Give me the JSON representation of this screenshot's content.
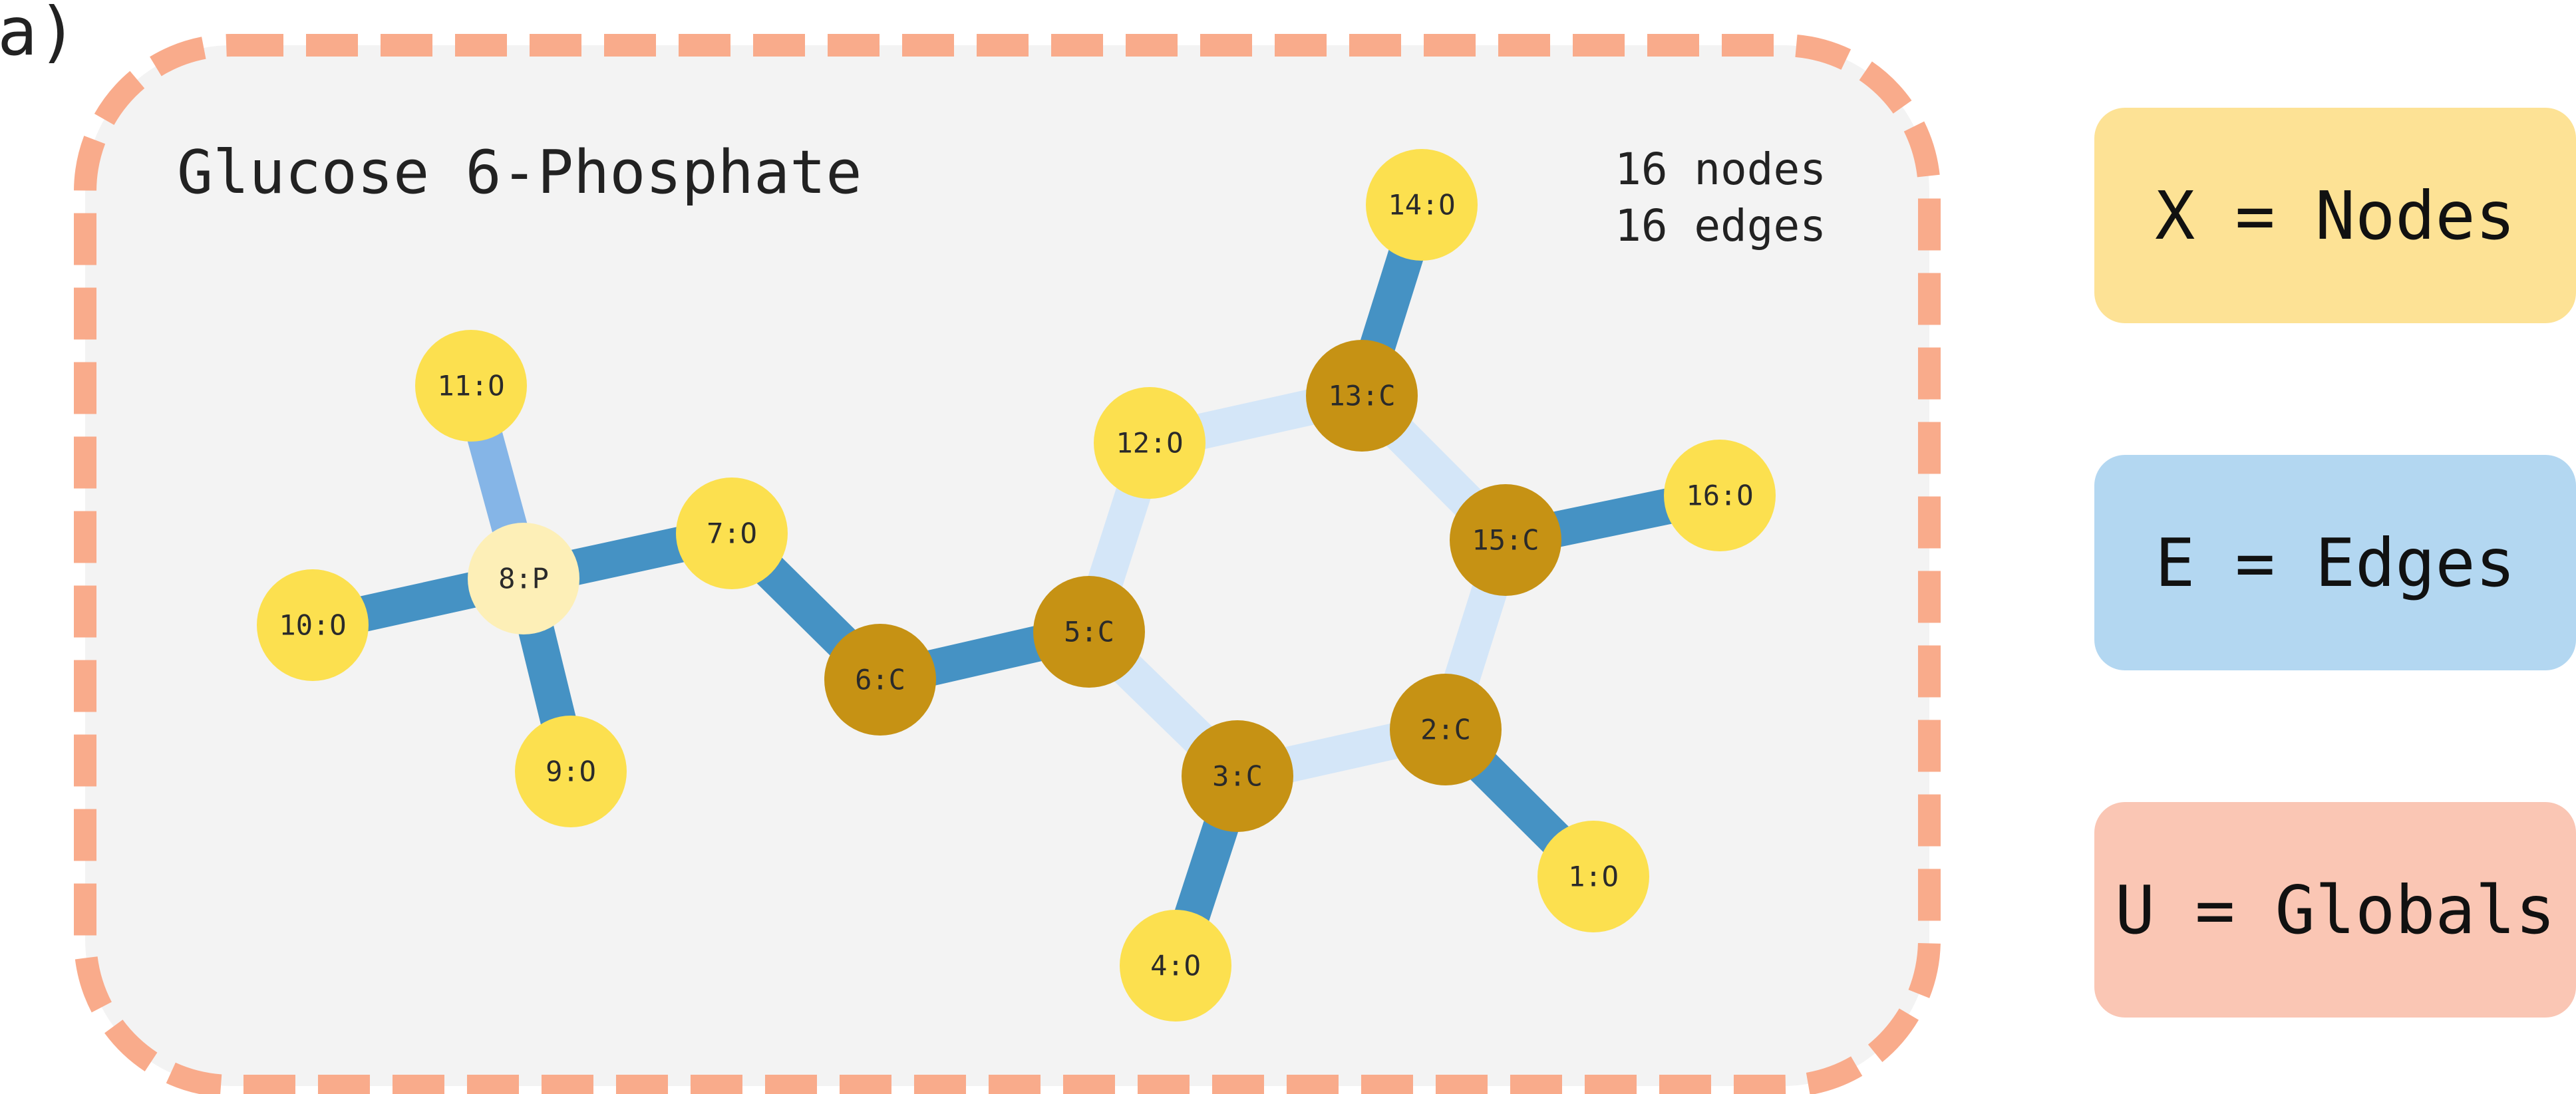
{
  "panel_label": "a)",
  "graph": {
    "title": "Glucose 6-Phosphate",
    "stats": [
      "16 nodes",
      "16 edges"
    ],
    "nodes": [
      {
        "id": "1:O"
      },
      {
        "id": "2:C"
      },
      {
        "id": "3:C"
      },
      {
        "id": "4:O"
      },
      {
        "id": "5:C"
      },
      {
        "id": "6:C"
      },
      {
        "id": "7:O"
      },
      {
        "id": "8:P"
      },
      {
        "id": "9:O"
      },
      {
        "id": "10:O"
      },
      {
        "id": "11:O"
      },
      {
        "id": "12:O"
      },
      {
        "id": "13:C"
      },
      {
        "id": "14:O"
      },
      {
        "id": "15:C"
      },
      {
        "id": "16:O"
      }
    ],
    "edges": [
      {
        "from": "10:O",
        "to": "8:P",
        "kind": "strong"
      },
      {
        "from": "11:O",
        "to": "8:P",
        "kind": "medium"
      },
      {
        "from": "8:P",
        "to": "9:O",
        "kind": "strong"
      },
      {
        "from": "8:P",
        "to": "7:O",
        "kind": "strong"
      },
      {
        "from": "7:O",
        "to": "6:C",
        "kind": "strong"
      },
      {
        "from": "6:C",
        "to": "5:C",
        "kind": "strong"
      },
      {
        "from": "5:C",
        "to": "12:O",
        "kind": "light"
      },
      {
        "from": "12:O",
        "to": "13:C",
        "kind": "light"
      },
      {
        "from": "13:C",
        "to": "14:O",
        "kind": "strong"
      },
      {
        "from": "13:C",
        "to": "15:C",
        "kind": "light"
      },
      {
        "from": "15:C",
        "to": "16:O",
        "kind": "strong"
      },
      {
        "from": "15:C",
        "to": "2:C",
        "kind": "light"
      },
      {
        "from": "2:C",
        "to": "1:O",
        "kind": "strong"
      },
      {
        "from": "2:C",
        "to": "3:C",
        "kind": "light"
      },
      {
        "from": "3:C",
        "to": "4:O",
        "kind": "strong"
      },
      {
        "from": "5:C",
        "to": "3:C",
        "kind": "light"
      }
    ]
  },
  "colors": {
    "oxygen": "#fce04f",
    "carbon": "#c69214",
    "phosphorus": "#fdefb7",
    "edge_strong": "#4592c4",
    "edge_medium": "#85b5e7",
    "edge_light": "#d4e6f8",
    "border_dash": "#f9ab8b",
    "panel_fill": "#f3f3f3"
  },
  "legend": [
    {
      "text": "X = Nodes",
      "color": "#fde295"
    },
    {
      "text": "E = Edges",
      "color": "#b3d7f1"
    },
    {
      "text": "U = Globals",
      "color": "#fac6b4"
    }
  ]
}
